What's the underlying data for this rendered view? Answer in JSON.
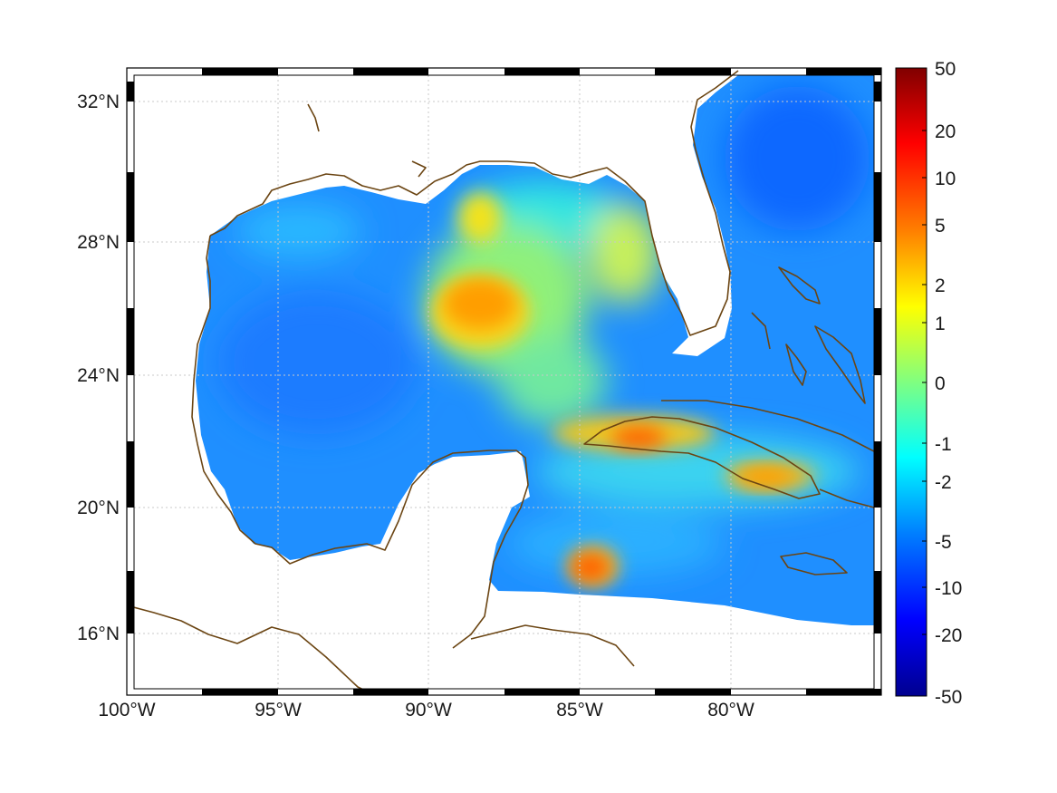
{
  "map": {
    "lon_ticks": [
      "100°W",
      "95°W",
      "90°W",
      "85°W",
      "80°W"
    ],
    "lat_ticks": [
      "32°N",
      "28°N",
      "24°N",
      "20°N",
      "16°N"
    ],
    "lon_range": [
      -100,
      -75
    ],
    "lat_range": [
      14.3,
      33
    ],
    "gridlines": true,
    "colormap": "jet",
    "coastline_color": "#6b4513"
  },
  "colorbar": {
    "tick_labels": [
      "50",
      "20",
      "10",
      "5",
      "2",
      "1",
      "0",
      "-1",
      "-2",
      "-5",
      "-10",
      "-20",
      "-50"
    ],
    "min": -50,
    "max": 50,
    "colors": [
      "#00008f",
      "#0000ff",
      "#0080ff",
      "#00ffff",
      "#80ff80",
      "#ffff00",
      "#ff8000",
      "#ff0000",
      "#800000"
    ]
  },
  "features": [
    {
      "name": "central Gulf anomaly",
      "level": 0.72
    },
    {
      "name": "western Cuba anomaly",
      "level": 0.78
    },
    {
      "name": "eastern Cuba anomaly",
      "level": 0.72
    },
    {
      "name": "NW Caribbean anomaly",
      "level": 0.78
    }
  ]
}
